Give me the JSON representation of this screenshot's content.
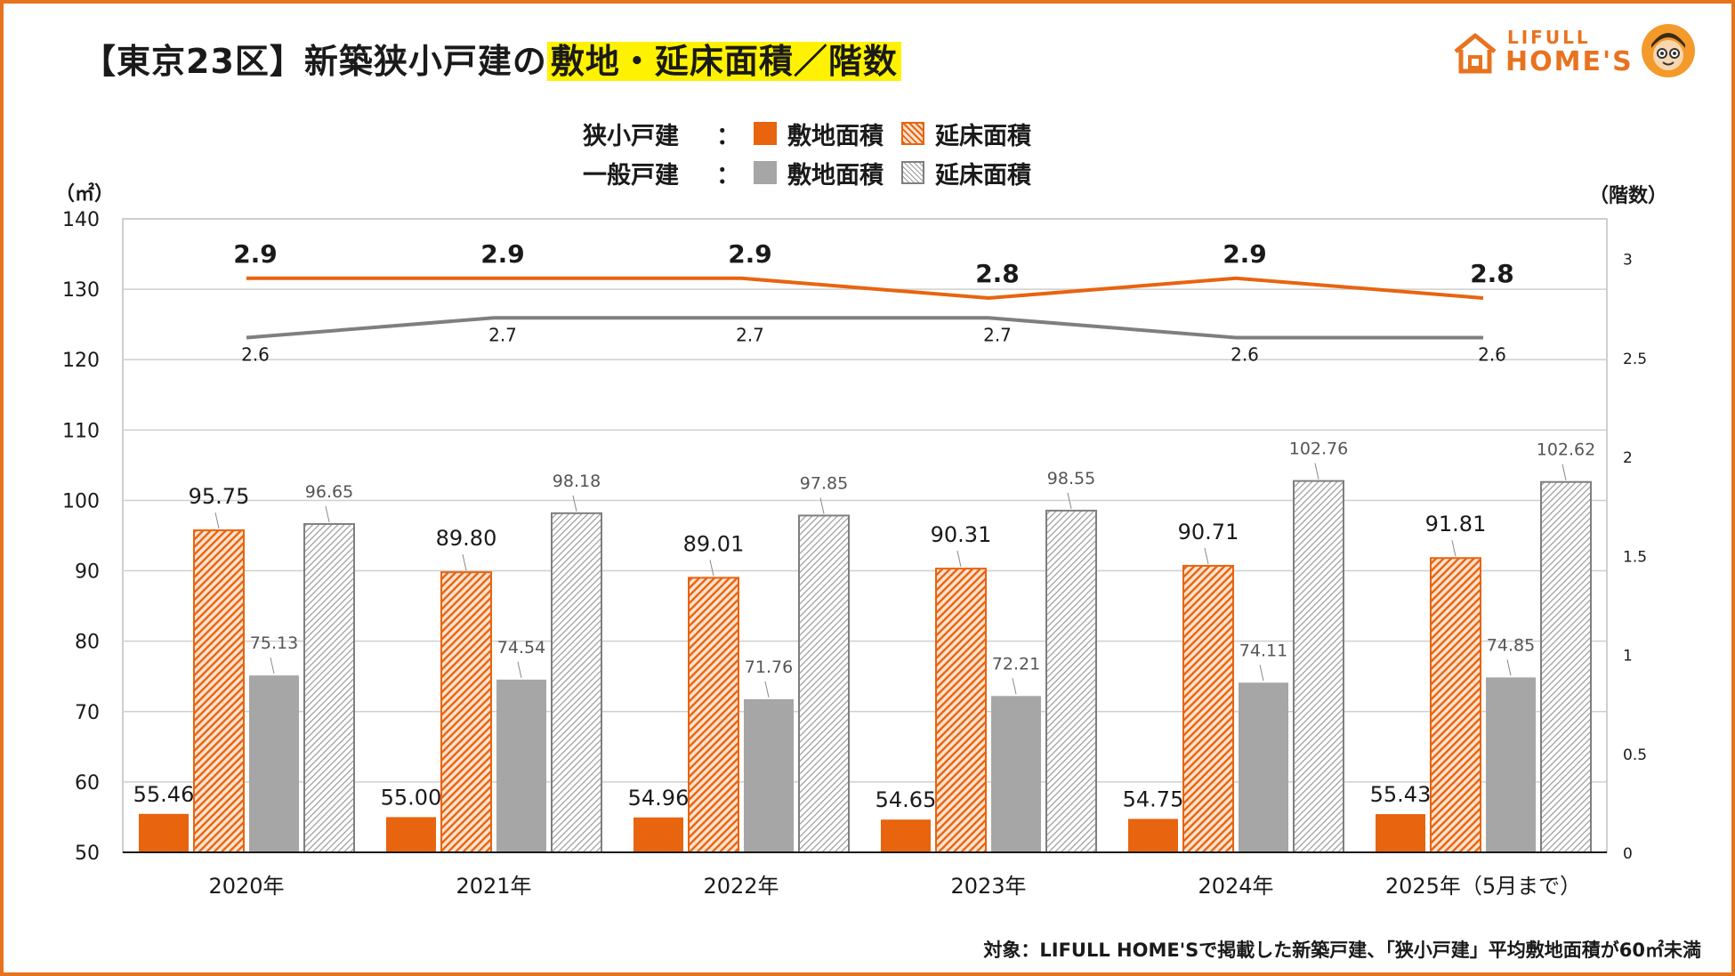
{
  "title": {
    "main": "【東京23区】新築狭小戸建の",
    "highlight": "敷地・延床面積／階数"
  },
  "logo": {
    "line1": "LIFULL",
    "line2": "HOME'S"
  },
  "legend": {
    "rows": [
      {
        "group": "狭小戸建",
        "colon": "：",
        "items": [
          "敷地面積",
          "延床面積"
        ]
      },
      {
        "group": "一般戸建",
        "colon": "：",
        "items": [
          "敷地面積",
          "延床面積"
        ]
      }
    ]
  },
  "units": {
    "left": "（㎡）",
    "right": "（階数）"
  },
  "footnote": "対象：LIFULL HOME'Sで掲載した新築戸建、「狭小戸建」平均敷地面積が60㎡未満",
  "colors": {
    "orange": "#e8640f",
    "orange_hatch_bg": "#fbe2cf",
    "gray": "#a6a6a6",
    "gray_hatch_line": "#9a9a9a",
    "gray_line": "#7f7f7f",
    "accent_border": "#e8731f"
  },
  "chart_data": {
    "type": "bar",
    "categories": [
      "2020年",
      "2021年",
      "2022年",
      "2023年",
      "2024年",
      "2025年（5月まで）"
    ],
    "y_left": {
      "min": 50,
      "max": 140,
      "step": 10,
      "label": "（㎡）"
    },
    "y_right": {
      "min": 0,
      "max": 3.2,
      "ticks": [
        "0",
        "0.5",
        "1",
        "1.5",
        "2",
        "2.5",
        "3"
      ],
      "label": "（階数）"
    },
    "series": [
      {
        "name": "狭小戸建 敷地面積",
        "kind": "bar",
        "axis": "left",
        "values": [
          55.46,
          55.0,
          54.96,
          54.65,
          54.75,
          55.43
        ],
        "labels": [
          "55.46",
          "55.00",
          "54.96",
          "54.65",
          "54.75",
          "55.43"
        ]
      },
      {
        "name": "狭小戸建 延床面積",
        "kind": "bar",
        "axis": "left",
        "values": [
          95.75,
          89.8,
          89.01,
          90.31,
          90.71,
          91.81
        ],
        "labels": [
          "95.75",
          "89.80",
          "89.01",
          "90.31",
          "90.71",
          "91.81"
        ]
      },
      {
        "name": "一般戸建 敷地面積",
        "kind": "bar",
        "axis": "left",
        "values": [
          75.13,
          74.54,
          71.76,
          72.21,
          74.11,
          74.85
        ],
        "labels": [
          "75.13",
          "74.54",
          "71.76",
          "72.21",
          "74.11",
          "74.85"
        ]
      },
      {
        "name": "一般戸建 延床面積",
        "kind": "bar",
        "axis": "left",
        "values": [
          96.65,
          98.18,
          97.85,
          98.55,
          102.76,
          102.62
        ],
        "labels": [
          "96.65",
          "98.18",
          "97.85",
          "98.55",
          "102.76",
          "102.62"
        ]
      },
      {
        "name": "狭小戸建 階数",
        "kind": "line",
        "axis": "right",
        "values": [
          2.9,
          2.9,
          2.9,
          2.8,
          2.9,
          2.8
        ],
        "labels": [
          "2.9",
          "2.9",
          "2.9",
          "2.8",
          "2.9",
          "2.8"
        ]
      },
      {
        "name": "一般戸建 階数",
        "kind": "line",
        "axis": "right",
        "values": [
          2.6,
          2.7,
          2.7,
          2.7,
          2.6,
          2.6
        ],
        "labels": [
          "2.6",
          "2.7",
          "2.7",
          "2.7",
          "2.6",
          "2.6"
        ]
      }
    ]
  }
}
